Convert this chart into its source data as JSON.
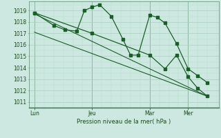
{
  "background_color": "#cce8e0",
  "grid_major_color": "#aacfbf",
  "grid_minor_color": "#bbddd0",
  "line_color": "#1a5e28",
  "xlabel": "Pression niveau de la mer( hPa )",
  "ylim": [
    1010.5,
    1019.8
  ],
  "yticks": [
    1011,
    1012,
    1013,
    1014,
    1015,
    1016,
    1017,
    1018,
    1019
  ],
  "xtick_labels": [
    "Lun",
    "Jeu",
    "Mar",
    "Mer"
  ],
  "xtick_positions": [
    0,
    30,
    60,
    80
  ],
  "xlim": [
    -3,
    96
  ],
  "vline_positions": [
    0,
    30,
    60,
    80
  ],
  "series1_x": [
    0,
    10,
    16,
    22,
    26,
    30,
    34,
    40,
    46,
    50,
    54,
    60,
    64,
    68,
    74,
    80,
    85,
    90
  ],
  "series1_y": [
    1018.8,
    1017.7,
    1017.3,
    1017.2,
    1019.0,
    1019.3,
    1019.5,
    1018.5,
    1016.5,
    1015.1,
    1015.1,
    1018.6,
    1018.4,
    1017.9,
    1016.1,
    1013.9,
    1013.3,
    1012.7
  ],
  "series2_x": [
    0,
    30,
    60,
    68,
    74,
    80,
    85,
    90
  ],
  "series2_y": [
    1018.8,
    1017.0,
    1015.1,
    1013.9,
    1015.1,
    1013.2,
    1012.2,
    1011.5
  ],
  "trend1_x": [
    0,
    90
  ],
  "trend1_y": [
    1018.7,
    1011.5
  ],
  "trend2_x": [
    0,
    90
  ],
  "trend2_y": [
    1017.1,
    1011.5
  ],
  "figsize": [
    3.2,
    2.0
  ],
  "dpi": 100
}
